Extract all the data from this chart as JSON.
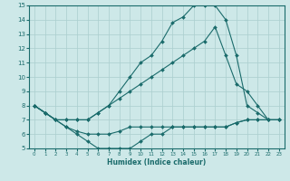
{
  "xlabel": "Humidex (Indice chaleur)",
  "xlim": [
    -0.5,
    23.5
  ],
  "ylim": [
    5,
    15
  ],
  "xticks": [
    0,
    1,
    2,
    3,
    4,
    5,
    6,
    7,
    8,
    9,
    10,
    11,
    12,
    13,
    14,
    15,
    16,
    17,
    18,
    19,
    20,
    21,
    22,
    23
  ],
  "yticks": [
    5,
    6,
    7,
    8,
    9,
    10,
    11,
    12,
    13,
    14,
    15
  ],
  "bg_color": "#cde8e8",
  "line_color": "#1a6b6b",
  "grid_color": "#aacece",
  "lines": [
    {
      "x": [
        0,
        1,
        2,
        3,
        4,
        5,
        6,
        7,
        8,
        9,
        10,
        11,
        12,
        13,
        14,
        15,
        16,
        17,
        18,
        19,
        20,
        21,
        22,
        23
      ],
      "y": [
        8,
        7.5,
        7,
        6.5,
        6.2,
        6,
        6,
        6,
        6.2,
        6.5,
        6.5,
        6.5,
        6.5,
        6.5,
        6.5,
        6.5,
        6.5,
        6.5,
        6.5,
        6.8,
        7,
        7,
        7,
        7
      ]
    },
    {
      "x": [
        0,
        1,
        2,
        3,
        4,
        5,
        6,
        7,
        8,
        9,
        10,
        11,
        12,
        13,
        14,
        15,
        16,
        17,
        18,
        19,
        20,
        21,
        22,
        23
      ],
      "y": [
        8,
        7.5,
        7,
        6.5,
        6,
        5.5,
        5,
        5,
        5,
        5,
        5.5,
        6,
        6,
        6.5,
        6.5,
        6.5,
        6.5,
        6.5,
        6.5,
        6.8,
        7,
        7,
        7,
        7
      ]
    },
    {
      "x": [
        0,
        1,
        2,
        3,
        4,
        5,
        6,
        7,
        8,
        9,
        10,
        11,
        12,
        13,
        14,
        15,
        16,
        17,
        18,
        19,
        20,
        21,
        22,
        23
      ],
      "y": [
        8,
        7.5,
        7,
        7,
        7,
        7,
        7.5,
        8,
        8.5,
        9,
        9.5,
        10,
        10.5,
        11,
        11.5,
        12,
        12.5,
        13.5,
        11.5,
        9.5,
        9,
        8,
        7,
        7
      ]
    },
    {
      "x": [
        0,
        1,
        2,
        3,
        4,
        5,
        6,
        7,
        8,
        9,
        10,
        11,
        12,
        13,
        14,
        15,
        16,
        17,
        18,
        19,
        20,
        21,
        22,
        23
      ],
      "y": [
        8,
        7.5,
        7,
        7,
        7,
        7,
        7.5,
        8,
        9,
        10,
        11,
        11.5,
        12.5,
        13.8,
        14.2,
        15,
        15,
        15,
        14,
        11.5,
        8,
        7.5,
        7,
        7
      ]
    }
  ]
}
